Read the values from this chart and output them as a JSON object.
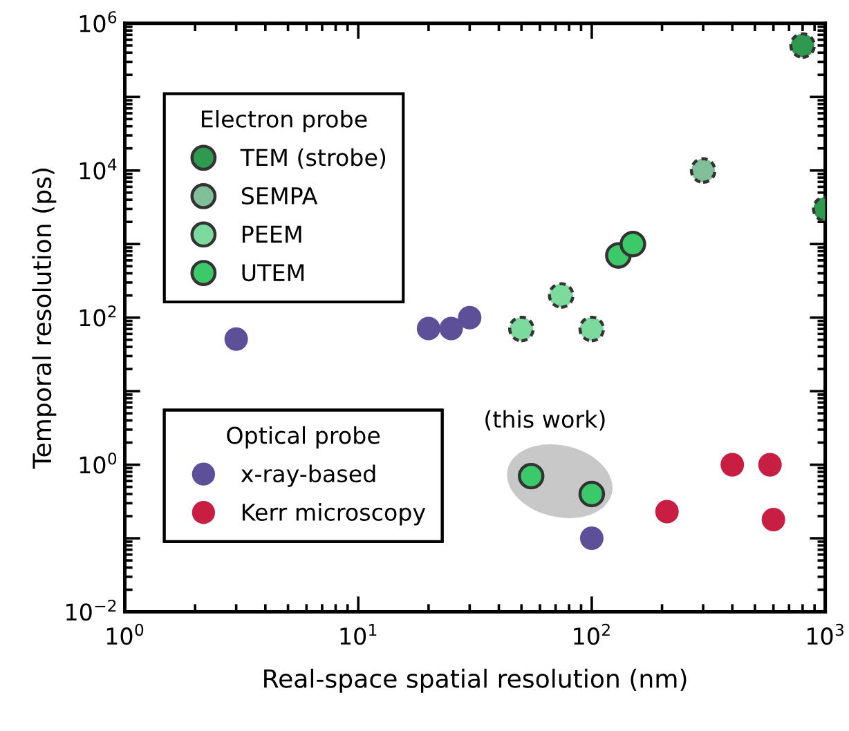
{
  "chart_data": {
    "type": "scatter",
    "xlabel": "Real-space spatial resolution (nm)",
    "ylabel": "Temporal resolution (ps)",
    "log": "xy",
    "marker": "circle",
    "grid": false,
    "xlim": [
      1,
      1000
    ],
    "ylim": [
      0.01,
      1000000
    ],
    "xticks": [
      {
        "value": 1,
        "label": "10$^{0}$"
      },
      {
        "value": 10,
        "label": "10$^{1}$"
      },
      {
        "value": 100,
        "label": "10$^{2}$"
      },
      {
        "value": 1000,
        "label": "10$^{3}$"
      }
    ],
    "yticks": [
      {
        "value": 0.01,
        "label": "10$^{−2}$"
      },
      {
        "value": 0.1,
        "label": null
      },
      {
        "value": 1,
        "label": "10$^{0}$"
      },
      {
        "value": 10,
        "label": null
      },
      {
        "value": 100,
        "label": "10$^{2}$"
      },
      {
        "value": 1000,
        "label": null
      },
      {
        "value": 10000,
        "label": "10$^{4}$"
      },
      {
        "value": 100000,
        "label": null
      },
      {
        "value": 1000000,
        "label": "10$^{6}$"
      }
    ],
    "legend_title": [
      "Electron probe",
      "Optical probe"
    ],
    "legend": [
      "top left",
      "bottom left"
    ],
    "series": [
      {
        "name": "TEM (strobe)",
        "color": "#2e9a50",
        "line_style": "dashed",
        "x": [
          800,
          1000
        ],
        "values": [
          500000,
          3000
        ]
      },
      {
        "name": "SEMPA",
        "color": "#80bf98",
        "line_style": "dashed",
        "x": [
          300
        ],
        "values": [
          10000
        ]
      },
      {
        "name": "PEEM",
        "color": "#7dda9f",
        "line_style": "dashed",
        "x": [
          50,
          74,
          100
        ],
        "values": [
          70,
          200,
          70
        ]
      },
      {
        "name": "UTEM",
        "color": "#3cc96a",
        "line_style": "solid",
        "x": [
          130,
          150,
          55,
          100
        ],
        "values": [
          700,
          1000,
          0.7,
          0.4
        ]
      },
      {
        "name": "x-ray-based",
        "color": "#5e4f99",
        "x": [
          3,
          20,
          25,
          30,
          100
        ],
        "values": [
          51,
          71,
          71,
          100,
          0.1
        ]
      },
      {
        "name": "Kerr microscopy",
        "color": "#c81e42",
        "x": [
          210,
          400,
          580,
          600
        ],
        "values": [
          0.23,
          1,
          1,
          0.18
        ]
      }
    ],
    "annotations": [
      "(this work)"
    ]
  }
}
